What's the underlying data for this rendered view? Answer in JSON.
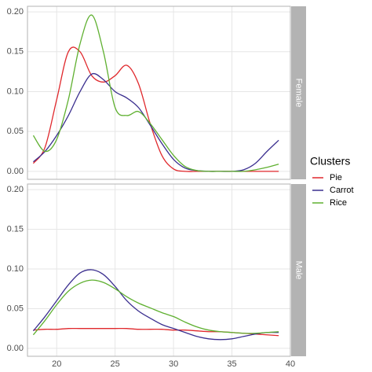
{
  "chart_data": {
    "type": "line",
    "x": [
      18,
      19,
      20,
      21,
      22,
      23,
      24,
      25,
      26,
      27,
      28,
      29,
      30,
      31,
      32,
      33,
      34,
      35,
      36,
      37,
      38,
      39
    ],
    "xlim": [
      17.5,
      40
    ],
    "xticks": [
      20,
      25,
      30,
      35,
      40
    ],
    "ylim": [
      -0.01,
      0.207
    ],
    "yticks": [
      {
        "value": 0,
        "label": "0.00"
      },
      {
        "value": 0.05,
        "label": "0.05"
      },
      {
        "value": 0.1,
        "label": "0.10"
      },
      {
        "value": 0.15,
        "label": "0.15"
      },
      {
        "value": 0.2,
        "label": "0.20"
      }
    ],
    "grid": true,
    "legend_title": "Clusters",
    "legend": "right",
    "series": [
      {
        "name": "Pie",
        "color": "#e0282c"
      },
      {
        "name": "Carrot",
        "color": "#3b2f8f"
      },
      {
        "name": "Rice",
        "color": "#5fb030"
      }
    ],
    "facets": [
      {
        "label": "Female",
        "series": [
          {
            "values": [
              0.01,
              0.03,
              0.09,
              0.15,
              0.15,
              0.12,
              0.112,
              0.12,
              0.133,
              0.11,
              0.06,
              0.02,
              0.003,
              0,
              0,
              0,
              0,
              0,
              0,
              0,
              0,
              0
            ]
          },
          {
            "values": [
              0.012,
              0.025,
              0.045,
              0.07,
              0.1,
              0.122,
              0.115,
              0.1,
              0.092,
              0.08,
              0.058,
              0.035,
              0.015,
              0.004,
              0.001,
              0,
              0,
              0,
              0.002,
              0.01,
              0.025,
              0.039
            ]
          },
          {
            "values": [
              0.045,
              0.025,
              0.04,
              0.09,
              0.16,
              0.196,
              0.15,
              0.08,
              0.07,
              0.075,
              0.06,
              0.04,
              0.02,
              0.006,
              0.001,
              0,
              0,
              0,
              0,
              0.002,
              0.005,
              0.009
            ]
          }
        ]
      },
      {
        "label": "Male",
        "series": [
          {
            "values": [
              0.023,
              0.024,
              0.024,
              0.025,
              0.025,
              0.025,
              0.025,
              0.025,
              0.025,
              0.024,
              0.024,
              0.024,
              0.023,
              0.023,
              0.022,
              0.021,
              0.021,
              0.02,
              0.019,
              0.018,
              0.017,
              0.016
            ]
          },
          {
            "values": [
              0.022,
              0.04,
              0.06,
              0.08,
              0.095,
              0.099,
              0.093,
              0.078,
              0.06,
              0.047,
              0.038,
              0.03,
              0.025,
              0.02,
              0.015,
              0.012,
              0.011,
              0.012,
              0.015,
              0.018,
              0.02,
              0.02
            ]
          },
          {
            "values": [
              0.017,
              0.035,
              0.055,
              0.072,
              0.082,
              0.086,
              0.083,
              0.075,
              0.065,
              0.057,
              0.051,
              0.045,
              0.04,
              0.033,
              0.027,
              0.023,
              0.021,
              0.02,
              0.019,
              0.019,
              0.02,
              0.021
            ]
          }
        ]
      }
    ]
  }
}
